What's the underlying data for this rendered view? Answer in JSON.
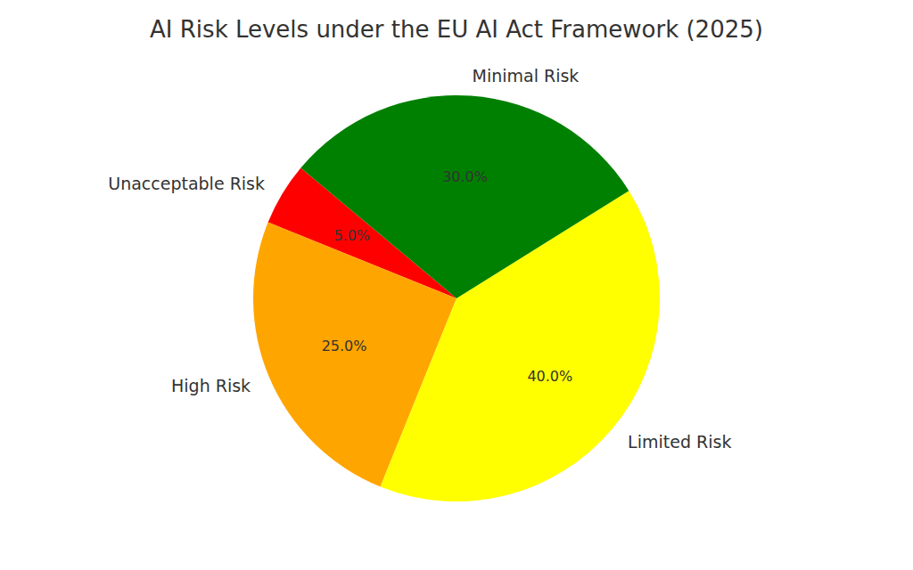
{
  "chart_data": {
    "type": "pie",
    "title": "AI Risk Levels under the EU AI Act Framework (2025)",
    "categories": [
      "Unacceptable Risk",
      "High Risk",
      "Limited Risk",
      "Minimal Risk"
    ],
    "values": [
      5,
      25,
      40,
      30
    ],
    "value_labels": [
      "5.0%",
      "25.0%",
      "40.0%",
      "30.0%"
    ],
    "colors": [
      "#ff0000",
      "#ffa500",
      "#ffff00",
      "#008000"
    ],
    "data_labels": true
  }
}
